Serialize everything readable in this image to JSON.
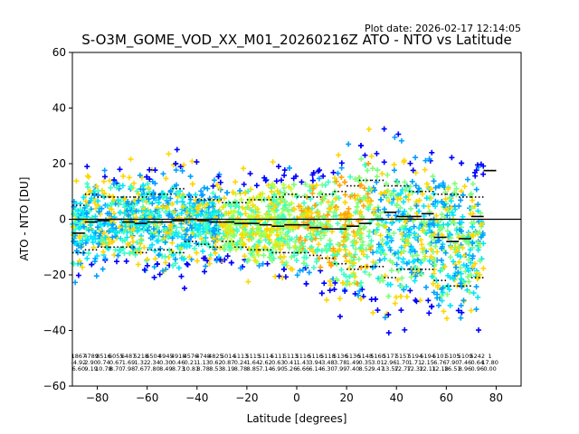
{
  "plot_date": "Plot date: 2026-02-17 12:14:05",
  "chart_data": {
    "type": "scatter",
    "title": "S-O3M_GOME_VOD_XX_M01_20260216Z ATO - NTO vs Latitude",
    "xlabel": "Latitude [degrees]",
    "ylabel": "ATO - NTO [DU]",
    "xlim": [
      -90,
      90
    ],
    "ylim": [
      -60,
      60
    ],
    "xticks": [
      -80,
      -60,
      -40,
      -20,
      0,
      20,
      40,
      60,
      80
    ],
    "yticks": [
      -60,
      -40,
      -20,
      0,
      20,
      40,
      60
    ],
    "reference_line": 0,
    "colors": {
      "scatter": [
        "#0000ff",
        "#00a0ff",
        "#00e5ff",
        "#3cffc3",
        "#7dff7a",
        "#baff3c",
        "#ffd700",
        "#ffa500"
      ],
      "axis": "#000000",
      "stats": "#000000"
    },
    "bin_centers": [
      -87.5,
      -82.5,
      -77.5,
      -72.5,
      -67.5,
      -62.5,
      -57.5,
      -52.5,
      -47.5,
      -42.5,
      -37.5,
      -32.5,
      -27.5,
      -22.5,
      -17.5,
      -12.5,
      -7.5,
      -2.5,
      2.5,
      7.5,
      12.5,
      17.5,
      22.5,
      27.5,
      32.5,
      37.5,
      42.5,
      47.5,
      52.5,
      57.5,
      62.5,
      67.5,
      72.5,
      77.5
    ],
    "bin_mean": [
      -5,
      -1,
      -0.5,
      0,
      -1,
      -1.5,
      -1,
      -1,
      -0.5,
      0,
      -0.5,
      -1,
      -1,
      -1.5,
      -1.5,
      -2,
      -2.5,
      -2,
      -2,
      -3,
      -3.5,
      -3.5,
      -2.5,
      -1.5,
      0,
      2.5,
      1,
      1,
      2,
      -6.5,
      -8,
      -7,
      1,
      17.5
    ],
    "bin_std_upper": [
      5,
      9,
      8,
      8,
      8,
      8,
      9,
      9,
      11,
      8,
      7,
      7,
      6,
      6,
      7,
      7,
      8,
      9,
      8,
      8,
      9,
      10,
      12,
      14,
      14,
      12,
      12,
      10,
      10,
      9,
      9,
      8,
      8,
      17.5
    ],
    "bin_std_lower": [
      -12,
      -11,
      -10,
      -10,
      -10,
      -12,
      -11,
      -11,
      -12,
      -8,
      -9,
      -10,
      -8,
      -10,
      -11,
      -11,
      -12,
      -12,
      -12,
      -13,
      -14,
      -16,
      -18,
      -17,
      -17,
      -21,
      -18,
      -18,
      -18,
      -22,
      -24,
      -24,
      -21,
      17.5
    ],
    "stats_rows": [
      [
        "1867",
        "4789",
        "8516",
        "6055",
        "6487",
        "5218",
        "6504",
        "4945",
        "4918",
        "4576",
        "4748",
        "4825",
        "5014",
        "5113",
        "5115",
        "5114",
        "5111",
        "5113",
        "5116",
        "5116",
        "5118",
        "5136",
        "5136",
        "5148",
        "5160",
        "5177",
        "5157",
        "5194",
        "5194",
        "5101",
        "5105",
        "5109",
        "5242",
        "1"
      ],
      [
        "-4.92",
        "2.90",
        "0.74",
        "0.67",
        "1.69",
        "1.32",
        "2.34",
        "0.30",
        "0.46",
        "0.21",
        "1.13",
        "0.62",
        "0.87",
        "0.24",
        "1.64",
        "2.62",
        "0.63",
        "0.41",
        "1.43",
        "3.94",
        "3.48",
        "3.78",
        "1.49",
        "0.35",
        "3.01",
        "2.96",
        "1.70",
        "1.71",
        "2.15",
        "6.76",
        "7.90",
        "7.46",
        "0.64",
        "17.80"
      ],
      [
        "6.60",
        "9.19",
        "10.78",
        "8.70",
        "7.98",
        "7.67",
        "7.80",
        "8.49",
        "8.73",
        "10.81",
        "8.78",
        "8.53",
        "8.19",
        "8.78",
        "8.85",
        "7.14",
        "6.90",
        "5.26",
        "6.66",
        "6.14",
        "6.30",
        "7.99",
        "7.40",
        "8.52",
        "9.47",
        "13.57",
        "12.77",
        "12.32",
        "12.11",
        "12.18",
        "16.51",
        "8.96",
        "0.96",
        "0.00"
      ]
    ]
  }
}
